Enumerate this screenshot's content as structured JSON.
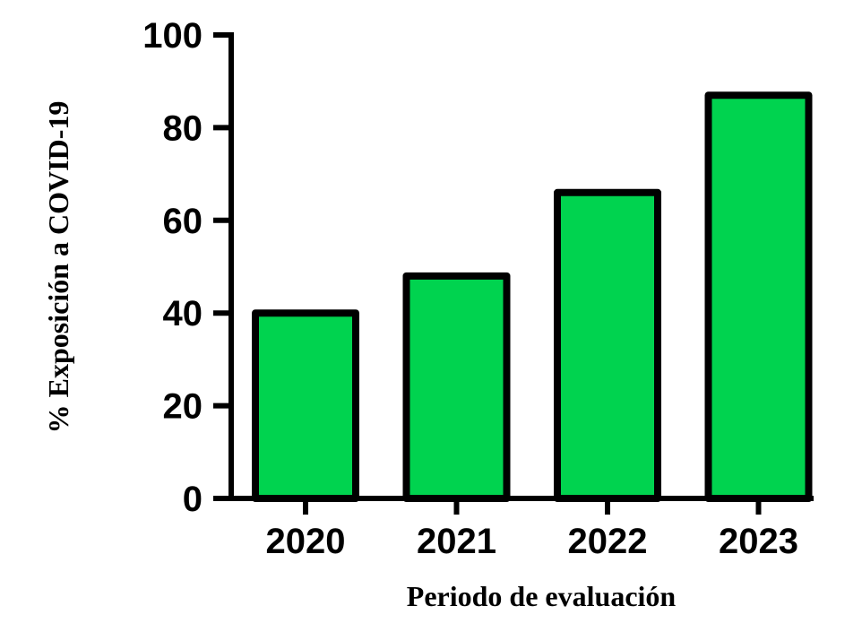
{
  "chart_data": {
    "type": "bar",
    "categories": [
      "2020",
      "2021",
      "2022",
      "2023"
    ],
    "values": [
      40,
      48,
      66,
      87
    ],
    "xlabel": "Periodo de evaluación",
    "ylabel": "% Exposición a COVID-19",
    "ylim": [
      0,
      100
    ],
    "yticks": [
      "0",
      "20",
      "40",
      "60",
      "80",
      "100"
    ],
    "grid": false,
    "legend": "none",
    "bar_color": "#00d34f",
    "bar_edge_color": "#000000"
  }
}
